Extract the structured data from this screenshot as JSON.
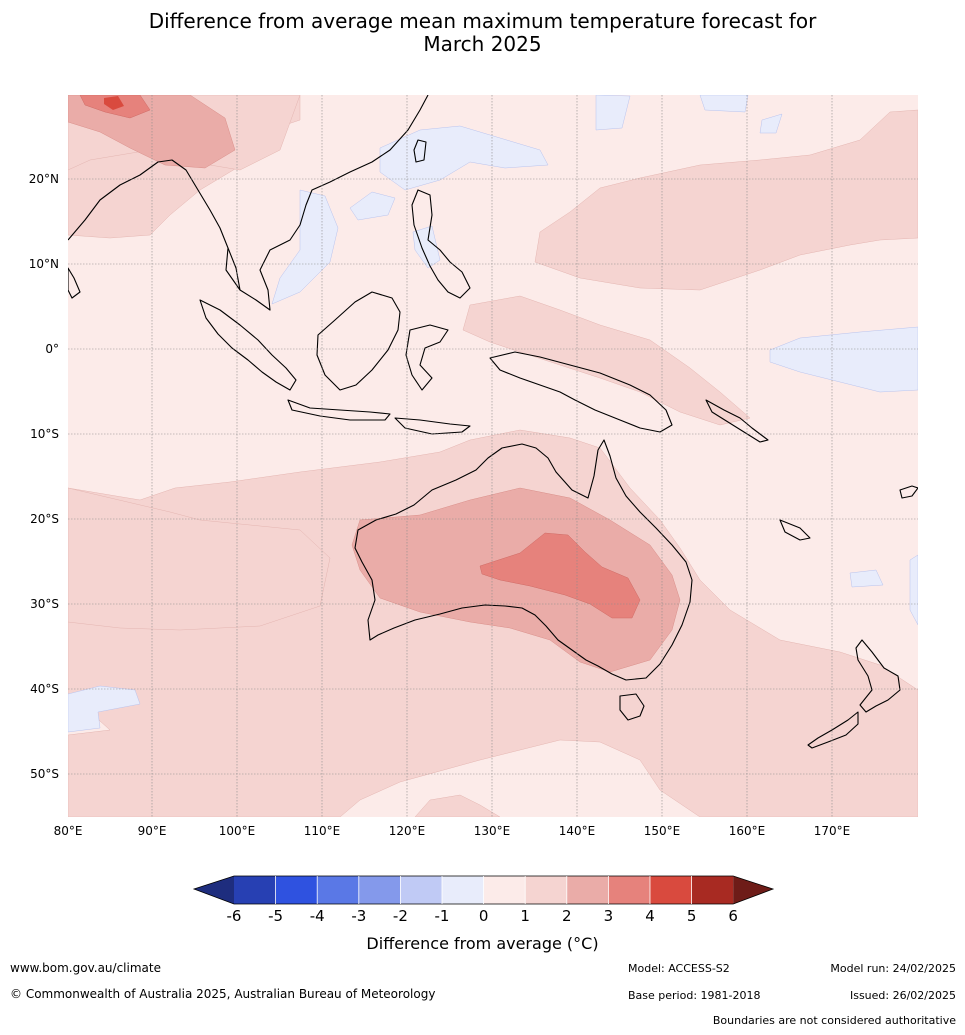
{
  "title": {
    "line1": "Difference from average mean maximum temperature forecast for",
    "line2": "March 2025"
  },
  "map": {
    "lon_range": [
      80,
      180
    ],
    "lat_range": [
      -55,
      30
    ],
    "lat_labels": [
      "20°N",
      "10°N",
      "0°",
      "10°S",
      "20°S",
      "30°S",
      "40°S",
      "50°S"
    ],
    "lon_labels": [
      "80°E",
      "90°E",
      "100°E",
      "110°E",
      "120°E",
      "130°E",
      "140°E",
      "150°E",
      "160°E",
      "170°E"
    ],
    "background_category": "0 to 1",
    "ocean_base_color": "#fcebe9"
  },
  "colorbar": {
    "title": "Difference from average (°C)",
    "tick_labels": [
      "-6",
      "-5",
      "-4",
      "-3",
      "-2",
      "-1",
      "0",
      "1",
      "2",
      "3",
      "4",
      "5",
      "6"
    ],
    "colors": [
      "#1e2d7e",
      "#2740b3",
      "#2f52e0",
      "#5a78e6",
      "#8499eb",
      "#c0caf5",
      "#e8ecfb",
      "#fcebe9",
      "#f5d4d1",
      "#eaaca8",
      "#e6827c",
      "#d94a3e",
      "#a82a22",
      "#6e1c18"
    ]
  },
  "footer": {
    "url": "www.bom.gov.au/climate",
    "copyright": "© Commonwealth of Australia 2025, Australian Bureau of Meteorology",
    "model": "Model: ACCESS-S2",
    "model_run": "Model run: 24/02/2025",
    "base_period": "Base period: 1981-2018",
    "issued": "Issued: 26/02/2025",
    "disclaimer": "Boundaries are not considered authoritative"
  }
}
